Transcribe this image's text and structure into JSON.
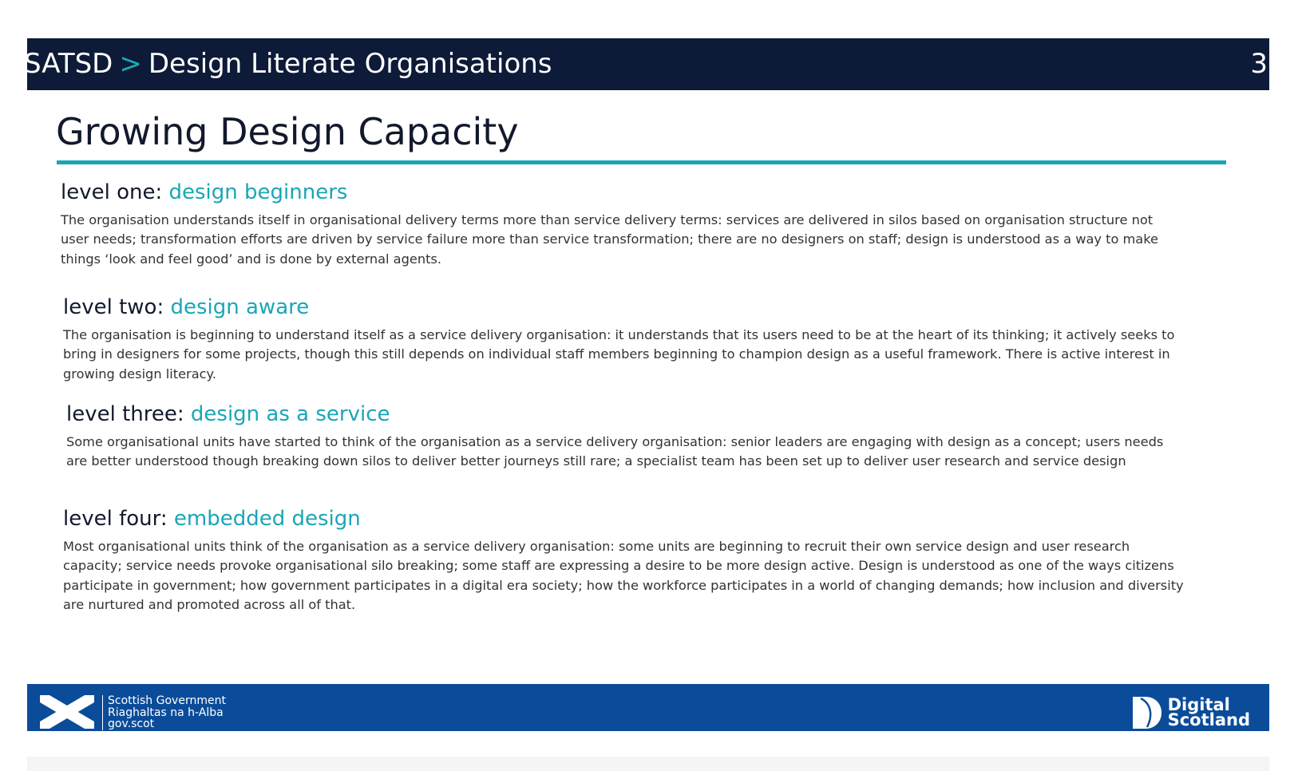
{
  "header": {
    "breadcrumb_root": "SATSD",
    "breadcrumb_sep": ">",
    "breadcrumb_page": "Design Literate Organisations",
    "page_number": "3"
  },
  "title": "Growing Design Capacity",
  "levels": [
    {
      "label": "level one:",
      "name": "design beginners",
      "text": "The organisation understands itself in organisational delivery terms more than service delivery terms: services are delivered in silos based on organisation structure not user needs; transformation efforts are driven by service failure more than service transformation; there are no designers on staff; design is understood as a way to make things ‘look and feel good’ and is done by external agents."
    },
    {
      "label": "level two:",
      "name": "design aware",
      "text": "The organisation is beginning to understand itself as a service delivery organisation: it understands that its users need to be at the heart of its thinking; it actively seeks to bring in designers for some projects, though this still depends on individual staff members beginning to champion design as a useful framework. There is active interest in growing design literacy."
    },
    {
      "label": "level three:",
      "name": "design as a service",
      "text": "Some organisational units have started to think of the organisation as a service delivery organisation: senior leaders are engaging with design as a concept; users needs are better understood though breaking down silos to deliver better journeys still rare; a specialist team has been set up to deliver user research and service design"
    },
    {
      "label": "level four:",
      "name": "embedded design",
      "text": "Most organisational units think of the organisation as a service delivery organisation: some units are beginning to recruit their own service design and user research capacity; service needs provoke organisational silo breaking; some staff are expressing a desire to be more design active. Design is understood as one of the ways citizens participate in government; how government participates in a digital era society; how the workforce participates in a world of changing demands; how inclusion and diversity are nurtured and promoted across all of that."
    }
  ],
  "footer": {
    "sg_line1": "Scottish Government",
    "sg_line2": "Riaghaltas na h-Alba",
    "sg_line3": "gov.scot",
    "ds_line1": "Digital",
    "ds_line2": "Scotland"
  },
  "colors": {
    "header_bg": "#0d1b38",
    "accent": "#1aa6b7",
    "footer_bg": "#0b4c9a"
  }
}
